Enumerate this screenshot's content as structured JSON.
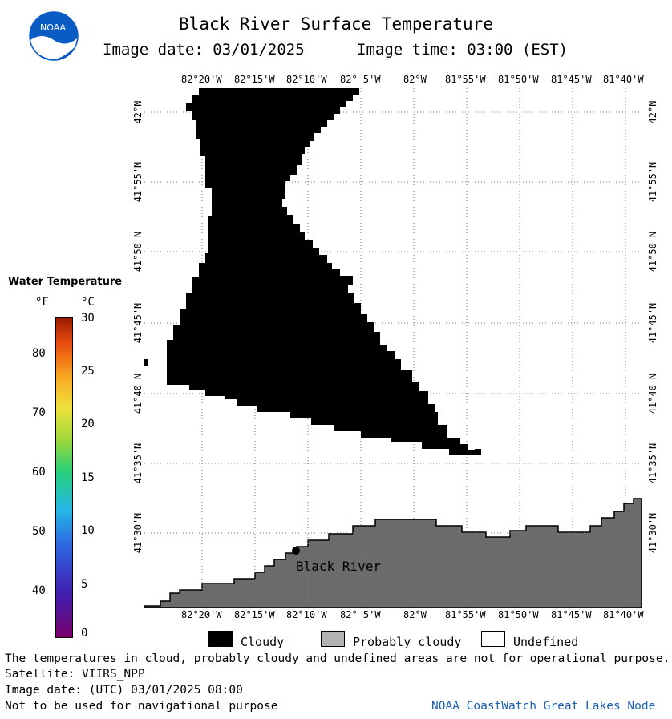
{
  "header": {
    "title": "Black River Surface Temperature",
    "image_date": "Image date: 03/01/2025",
    "image_time": "Image time: 03:00 (EST)",
    "logo_text": "NOAA"
  },
  "map": {
    "lon_ticks": [
      "82°20'W",
      "82°15'W",
      "82°10'W",
      "82° 5'W",
      "82°W",
      "81°55'W",
      "81°50'W",
      "81°45'W",
      "81°40'W"
    ],
    "lat_ticks": [
      "42°N",
      "41°55'N",
      "41°50'N",
      "41°45'N",
      "41°40'N",
      "41°35'N",
      "41°30'N"
    ],
    "station_label": "Black River",
    "colors": {
      "cloud": "#000000",
      "land": "#6b6b6b",
      "water": "#ffffff",
      "grid": "#888888"
    }
  },
  "color_scale": {
    "title": "Water Temperature",
    "unit_f": "°F",
    "unit_c": "°C",
    "f_ticks": [
      "80",
      "70",
      "60",
      "50",
      "40"
    ],
    "c_ticks": [
      "30",
      "25",
      "20",
      "15",
      "10",
      "5",
      "0"
    ]
  },
  "legend": {
    "cloudy": "Cloudy",
    "probably_cloudy": "Probably cloudy",
    "undefined": "Undefined",
    "colors": {
      "cloudy": "#000000",
      "probably_cloudy": "#b4b4b4",
      "undefined": "#ffffff"
    }
  },
  "footer": {
    "disclaimer": "The temperatures in cloud, probably cloudy and undefined areas are not for operational purpose.",
    "satellite": "Satellite: VIIRS_NPP",
    "utc_date": "Image date: (UTC) 03/01/2025  08:00",
    "navigation": "Not to be used for navigational purpose",
    "credit": "NOAA CoastWatch Great Lakes Node"
  }
}
